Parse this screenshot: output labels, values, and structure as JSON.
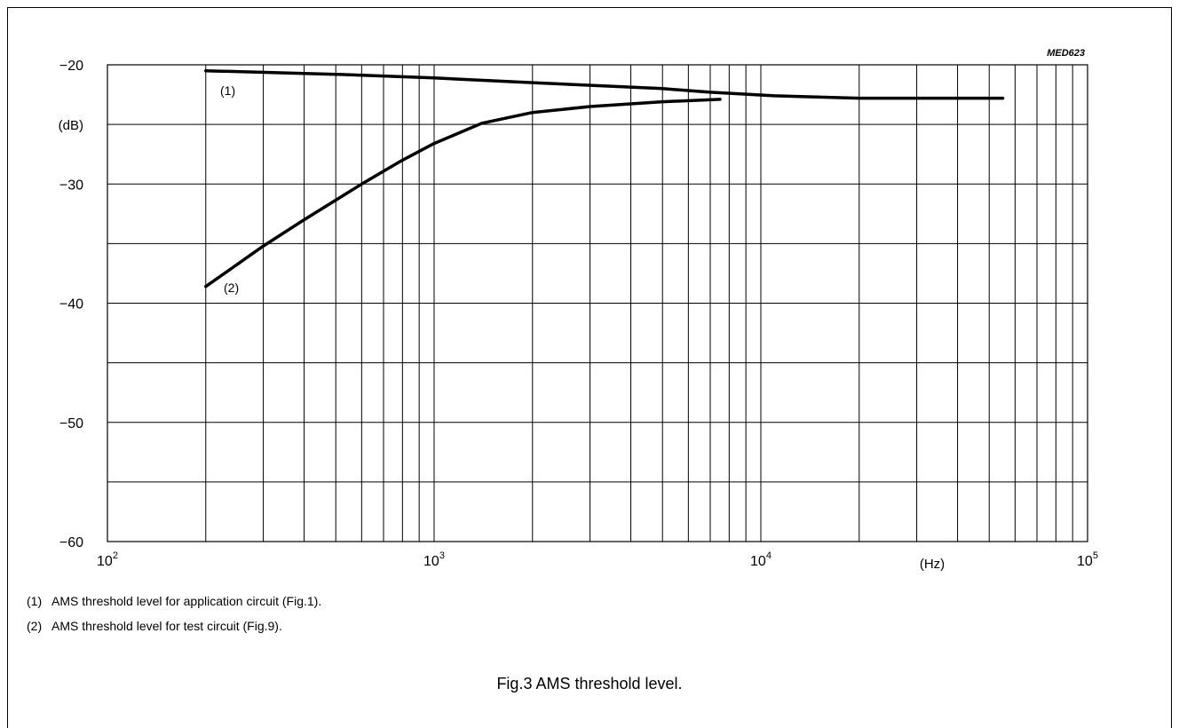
{
  "chart_data": {
    "type": "line",
    "code": "MED623",
    "ylabel": "(dB)",
    "xlabel": "(Hz)",
    "xscale": "log",
    "xlim": [
      100,
      100000
    ],
    "ylim": [
      -60,
      -20
    ],
    "y_ticks": [
      "−60",
      "−50",
      "−40",
      "−30",
      "−20"
    ],
    "x_ticks": [
      {
        "base": "10",
        "exp": "2"
      },
      {
        "base": "10",
        "exp": "3"
      },
      {
        "base": "10",
        "exp": "4"
      },
      {
        "base": "10",
        "exp": "5"
      }
    ],
    "grid": true,
    "series": [
      {
        "name": "(1)",
        "x": [
          200,
          500,
          1000,
          2000,
          5000,
          7000,
          11000,
          20000,
          55000
        ],
        "y": [
          -20.5,
          -20.8,
          -21.1,
          -21.5,
          -22.0,
          -22.3,
          -22.6,
          -22.8,
          -22.8
        ]
      },
      {
        "name": "(2)",
        "x": [
          200,
          300,
          400,
          600,
          800,
          1000,
          1400,
          2000,
          3000,
          5000,
          7500
        ],
        "y": [
          -38.6,
          -35.2,
          -33.0,
          -30.0,
          -28.0,
          -26.6,
          -24.9,
          -24.0,
          -23.5,
          -23.1,
          -22.9
        ]
      }
    ]
  },
  "notes": [
    {
      "num": "(1)",
      "text": "AMS threshold level for application circuit (Fig.1)."
    },
    {
      "num": "(2)",
      "text": "AMS threshold level for test circuit (Fig.9)."
    }
  ],
  "caption": "Fig.3  AMS threshold level."
}
